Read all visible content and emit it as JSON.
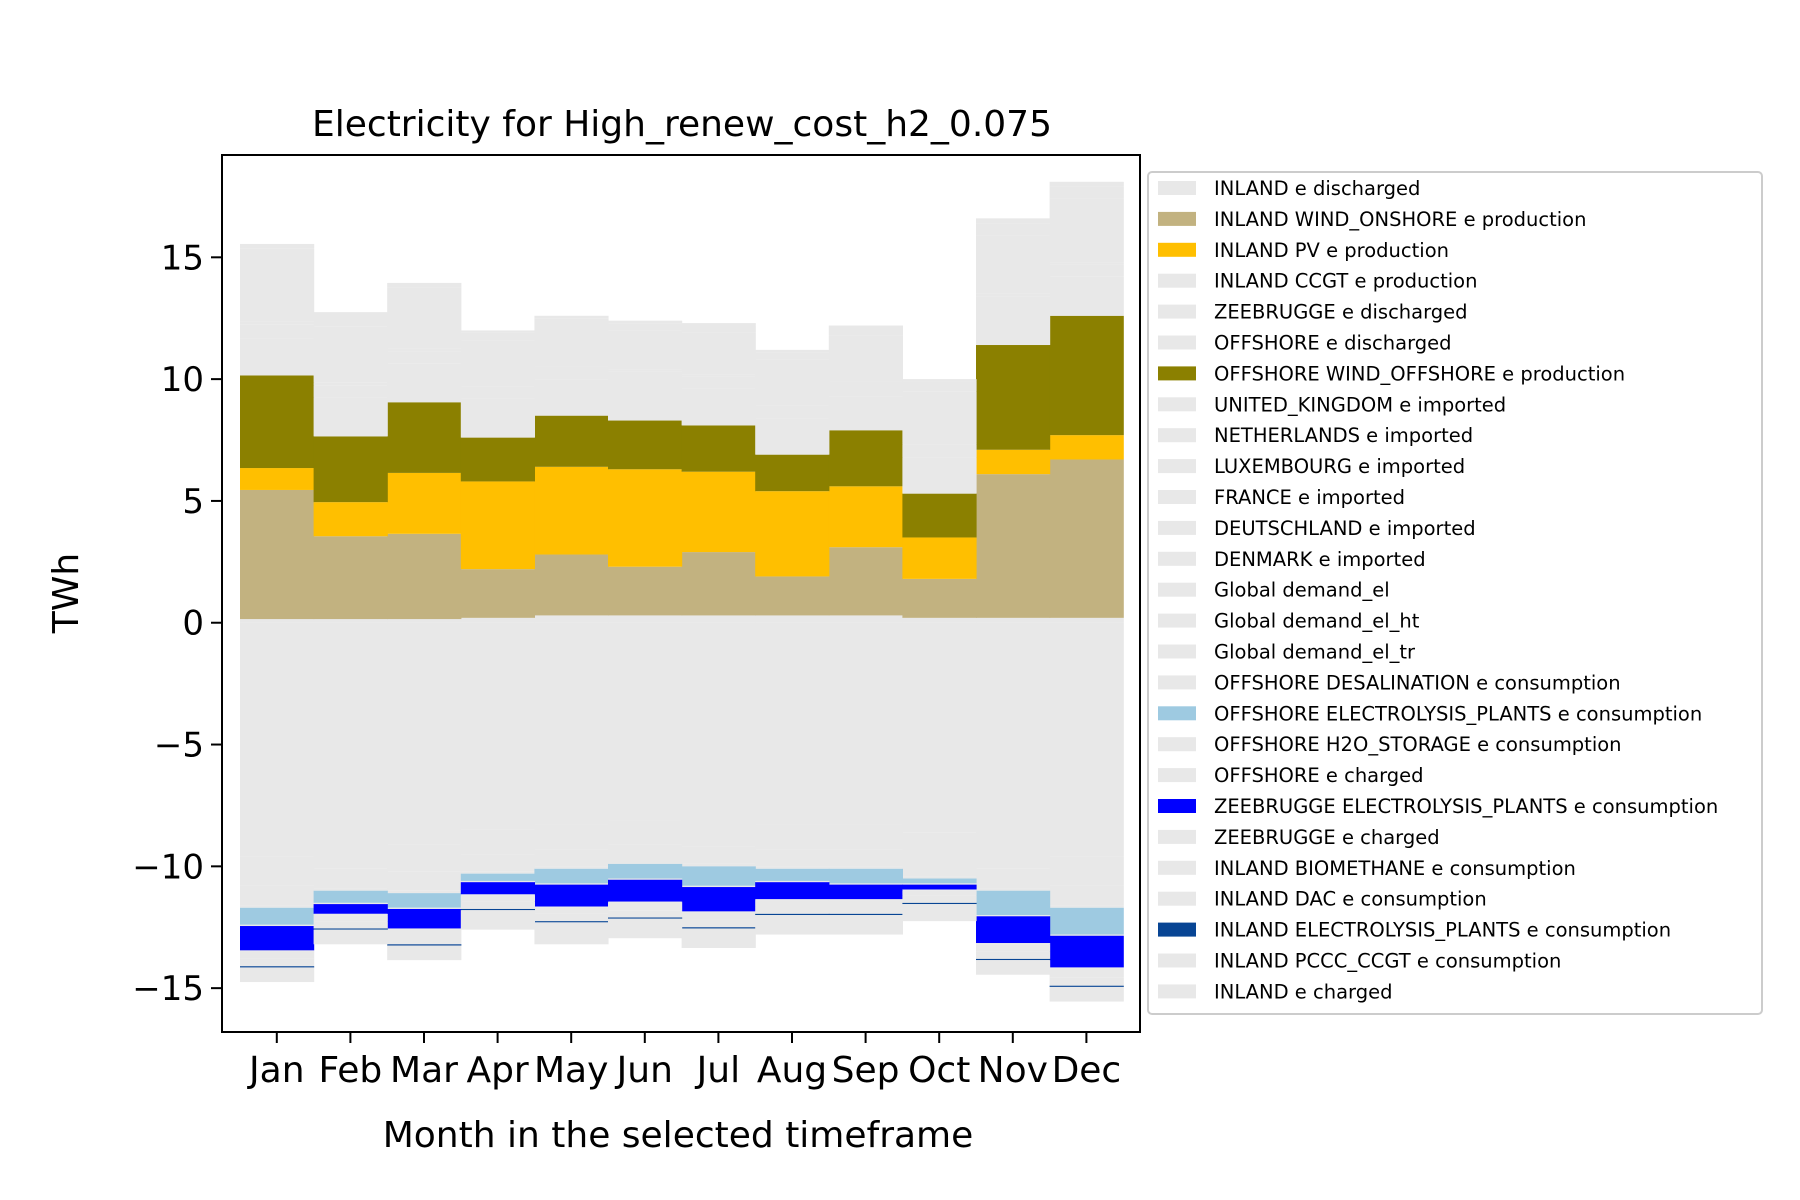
{
  "chart_data": {
    "type": "area",
    "title": "Electricity for High_renew_cost_h2_0.075",
    "xlabel": "Month in the selected timeframe",
    "ylabel": "TWh",
    "categories": [
      "Jan",
      "Feb",
      "Mar",
      "Apr",
      "May",
      "Jun",
      "Jul",
      "Aug",
      "Sep",
      "Oct",
      "Nov",
      "Dec"
    ],
    "ylim": [
      -16.8,
      19.2
    ],
    "yticks": [
      -15,
      -10,
      -5,
      0,
      5,
      10,
      15
    ],
    "ytick_labels": [
      "−15",
      "−10",
      "−5",
      "0",
      "5",
      "10",
      "15"
    ],
    "grid": false,
    "legend_position": "right, outside plot",
    "colors": {
      "light_gray": "#e8e8e8",
      "wind_onshore": "#c2b280",
      "pv": "#ffbf00",
      "wind_offshore": "#8b8000",
      "offshore_electrolysis": "#9ecae1",
      "zeebrugge_electrolysis": "#0000ff",
      "inland_electrolysis": "#084594"
    },
    "series": [
      {
        "name": "INLAND e discharged",
        "color": "#e8e8e8",
        "values": [
          0.15,
          0.15,
          0.15,
          0.2,
          0.3,
          0.3,
          0.3,
          0.3,
          0.3,
          0.2,
          0.2,
          0.2
        ]
      },
      {
        "name": "INLAND WIND_ONSHORE e production",
        "color": "#c2b280",
        "values": [
          5.3,
          3.4,
          3.5,
          2.0,
          2.5,
          2.0,
          2.6,
          1.6,
          2.8,
          1.6,
          5.9,
          6.5
        ]
      },
      {
        "name": "INLAND PV e production",
        "color": "#ffbf00",
        "values": [
          0.9,
          1.4,
          2.5,
          3.6,
          3.6,
          4.0,
          3.3,
          3.5,
          2.5,
          1.7,
          1.0,
          1.0
        ]
      },
      {
        "name": "INLAND CCGT e production",
        "color": "#e8e8e8",
        "values": [
          0,
          0,
          0,
          0,
          0,
          0,
          0,
          0,
          0,
          0,
          0,
          0
        ]
      },
      {
        "name": "ZEEBRUGGE e discharged",
        "color": "#e8e8e8",
        "values": [
          0,
          0,
          0,
          0,
          0,
          0,
          0,
          0,
          0,
          0,
          0,
          0
        ]
      },
      {
        "name": "OFFSHORE e discharged",
        "color": "#e8e8e8",
        "values": [
          0,
          0,
          0,
          0,
          0,
          0,
          0,
          0,
          0,
          0,
          0,
          0
        ]
      },
      {
        "name": "OFFSHORE WIND_OFFSHORE e production",
        "color": "#8b8000",
        "values": [
          3.8,
          2.7,
          2.9,
          1.8,
          2.1,
          2.0,
          1.9,
          1.5,
          2.3,
          1.8,
          4.3,
          4.9
        ]
      },
      {
        "name": "UNITED_KINGDOM e imported",
        "color": "#e8e8e8",
        "values": [
          1.5,
          1.6,
          1.6,
          1.6,
          1.5,
          1.5,
          1.5,
          1.5,
          1.4,
          1.5,
          1.5,
          1.6
        ]
      },
      {
        "name": "NETHERLANDS e imported",
        "color": "#e8e8e8",
        "values": [
          0.6,
          0.5,
          0.5,
          0.5,
          0.5,
          0.5,
          0.5,
          0.5,
          0.5,
          0.5,
          0.5,
          0.5
        ]
      },
      {
        "name": "LUXEMBOURG e imported",
        "color": "#e8e8e8",
        "values": [
          0.1,
          0.1,
          0.1,
          0.1,
          0.1,
          0.1,
          0.1,
          0.1,
          0.1,
          0.1,
          0.1,
          0.1
        ]
      },
      {
        "name": "FRANCE e imported",
        "color": "#e8e8e8",
        "values": [
          2.5,
          2.3,
          2.1,
          1.8,
          1.6,
          1.6,
          1.7,
          1.8,
          1.9,
          2.1,
          2.4,
          2.6
        ]
      },
      {
        "name": "DEUTSCHLAND e imported",
        "color": "#e8e8e8",
        "values": [
          0.5,
          0.4,
          0.4,
          0.3,
          0.3,
          0.3,
          0.3,
          0.3,
          0.3,
          0.4,
          0.5,
          0.5
        ]
      },
      {
        "name": "DENMARK e imported",
        "color": "#e8e8e8",
        "values": [
          0.2,
          0.2,
          0.2,
          0.1,
          0.1,
          0.1,
          0.1,
          0.1,
          0.1,
          0.1,
          0.2,
          0.2
        ]
      },
      {
        "name": "Global demand_el",
        "color": "#e8e8e8",
        "values": [
          -9.6,
          -9.0,
          -9.1,
          -8.5,
          -8.3,
          -8.1,
          -8.2,
          -8.3,
          -8.3,
          -8.6,
          -9.0,
          -9.6
        ]
      },
      {
        "name": "Global demand_el_ht",
        "color": "#e8e8e8",
        "values": [
          -1.2,
          -1.1,
          -1.1,
          -1.0,
          -1.0,
          -1.0,
          -1.0,
          -1.0,
          -1.0,
          -1.1,
          -1.1,
          -1.2
        ]
      },
      {
        "name": "Global demand_el_tr",
        "color": "#e8e8e8",
        "values": [
          -0.8,
          -0.8,
          -0.8,
          -0.7,
          -0.7,
          -0.7,
          -0.7,
          -0.7,
          -0.7,
          -0.7,
          -0.8,
          -0.8
        ]
      },
      {
        "name": "OFFSHORE DESALINATION e consumption",
        "color": "#e8e8e8",
        "values": [
          -0.1,
          -0.1,
          -0.1,
          -0.1,
          -0.1,
          -0.1,
          -0.1,
          -0.1,
          -0.1,
          -0.1,
          -0.1,
          -0.1
        ]
      },
      {
        "name": "OFFSHORE ELECTROLYSIS_PLANTS e consumption",
        "color": "#9ecae1",
        "values": [
          -0.7,
          -0.5,
          -0.6,
          -0.3,
          -0.6,
          -0.6,
          -0.8,
          -0.5,
          -0.6,
          -0.2,
          -1.0,
          -1.1
        ]
      },
      {
        "name": "OFFSHORE H2O_STORAGE e consumption",
        "color": "#e8e8e8",
        "values": [
          0,
          0,
          0,
          0,
          0,
          0,
          0,
          0,
          0,
          0,
          0,
          0
        ]
      },
      {
        "name": "OFFSHORE e charged",
        "color": "#e8e8e8",
        "values": [
          -0.05,
          -0.05,
          -0.05,
          -0.05,
          -0.05,
          -0.05,
          -0.05,
          -0.05,
          -0.05,
          -0.05,
          -0.05,
          -0.05
        ]
      },
      {
        "name": "ZEEBRUGGE ELECTROLYSIS_PLANTS e consumption",
        "color": "#0000ff",
        "values": [
          -1.0,
          -0.4,
          -0.8,
          -0.5,
          -0.9,
          -0.9,
          -1.0,
          -0.7,
          -0.6,
          -0.2,
          -1.1,
          -1.3
        ]
      },
      {
        "name": "ZEEBRUGGE e charged",
        "color": "#e8e8e8",
        "values": [
          -0.05,
          -0.05,
          -0.05,
          -0.05,
          -0.05,
          -0.05,
          -0.05,
          -0.05,
          -0.05,
          -0.05,
          -0.05,
          -0.05
        ]
      },
      {
        "name": "INLAND BIOMETHANE e consumption",
        "color": "#e8e8e8",
        "values": [
          -0.3,
          -0.25,
          -0.3,
          -0.25,
          -0.25,
          -0.3,
          -0.3,
          -0.25,
          -0.25,
          -0.2,
          -0.3,
          -0.35
        ]
      },
      {
        "name": "INLAND DAC e consumption",
        "color": "#e8e8e8",
        "values": [
          -0.3,
          -0.3,
          -0.3,
          -0.3,
          -0.3,
          -0.3,
          -0.3,
          -0.3,
          -0.3,
          -0.3,
          -0.3,
          -0.35
        ]
      },
      {
        "name": "INLAND ELECTROLYSIS_PLANTS e consumption",
        "color": "#084594",
        "values": [
          -0.05,
          -0.05,
          -0.05,
          -0.05,
          -0.05,
          -0.05,
          -0.05,
          -0.05,
          -0.05,
          -0.05,
          -0.05,
          -0.05
        ]
      },
      {
        "name": "INLAND PCCC_CCGT e consumption",
        "color": "#e8e8e8",
        "values": [
          0,
          0,
          0,
          0,
          0,
          0,
          0,
          0,
          0,
          0,
          0,
          0
        ]
      },
      {
        "name": "INLAND e charged",
        "color": "#e8e8e8",
        "values": [
          -0.6,
          -0.6,
          -0.6,
          -0.8,
          -0.9,
          -0.8,
          -0.8,
          -0.8,
          -0.8,
          -0.7,
          -0.6,
          -0.6
        ]
      }
    ]
  }
}
